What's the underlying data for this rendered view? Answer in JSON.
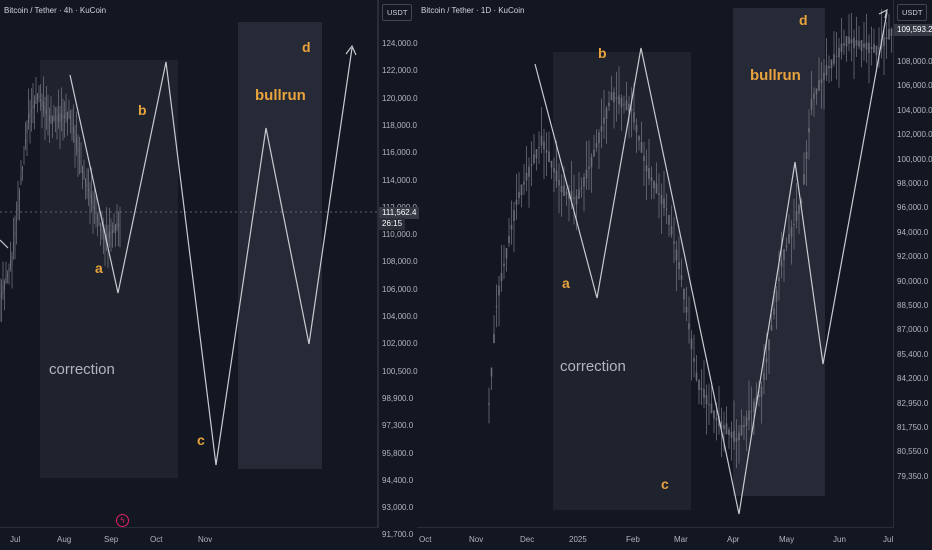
{
  "left_chart": {
    "title": "Bitcoin / Tether · 4h · KuCoin",
    "currency": "USDT",
    "price_ticks": [
      "124,000.0",
      "122,000.0",
      "120,000.0",
      "118,000.0",
      "116,000.0",
      "114,000.0",
      "112,000.0",
      "110,000.0",
      "108,000.0",
      "106,000.0",
      "104,000.0",
      "102,000.0",
      "100,500.0",
      "98,900.0",
      "97,300.0",
      "95,800.0",
      "94,400.0",
      "93,000.0",
      "91,700.0"
    ],
    "current_price": "111,562.4",
    "countdown": "26:15",
    "time_ticks": [
      "Jul",
      "Aug",
      "Sep",
      "Oct",
      "Nov"
    ],
    "labels": {
      "a": "a",
      "b": "b",
      "c": "c",
      "d": "d",
      "correction": "correction",
      "bullrun": "bullrun"
    },
    "event_icon": "lightning-icon"
  },
  "right_chart": {
    "title": "Bitcoin / Tether · 1D · KuCoin",
    "currency": "USDT",
    "price_ticks": [
      "108,000.0",
      "106,000.0",
      "104,000.0",
      "102,000.0",
      "100,000.0",
      "98,000.0",
      "96,000.0",
      "94,000.0",
      "92,000.0",
      "90,000.0",
      "88,500.0",
      "87,000.0",
      "85,400.0",
      "84,200.0",
      "82,950.0",
      "81,750.0",
      "80,550.0",
      "79,350.0"
    ],
    "current_price": "109,593.2",
    "time_ticks": [
      "Oct",
      "Nov",
      "Dec",
      "2025",
      "Feb",
      "Mar",
      "Apr",
      "May",
      "Jun",
      "Jul"
    ],
    "labels": {
      "a": "a",
      "b": "b",
      "c": "c",
      "d": "d",
      "correction": "correction",
      "bullrun": "bullrun"
    }
  },
  "colors": {
    "background": "#131722",
    "wave_label": "#e8a33d",
    "candles": "#6b6f7a",
    "zone": "#2a2e39"
  }
}
